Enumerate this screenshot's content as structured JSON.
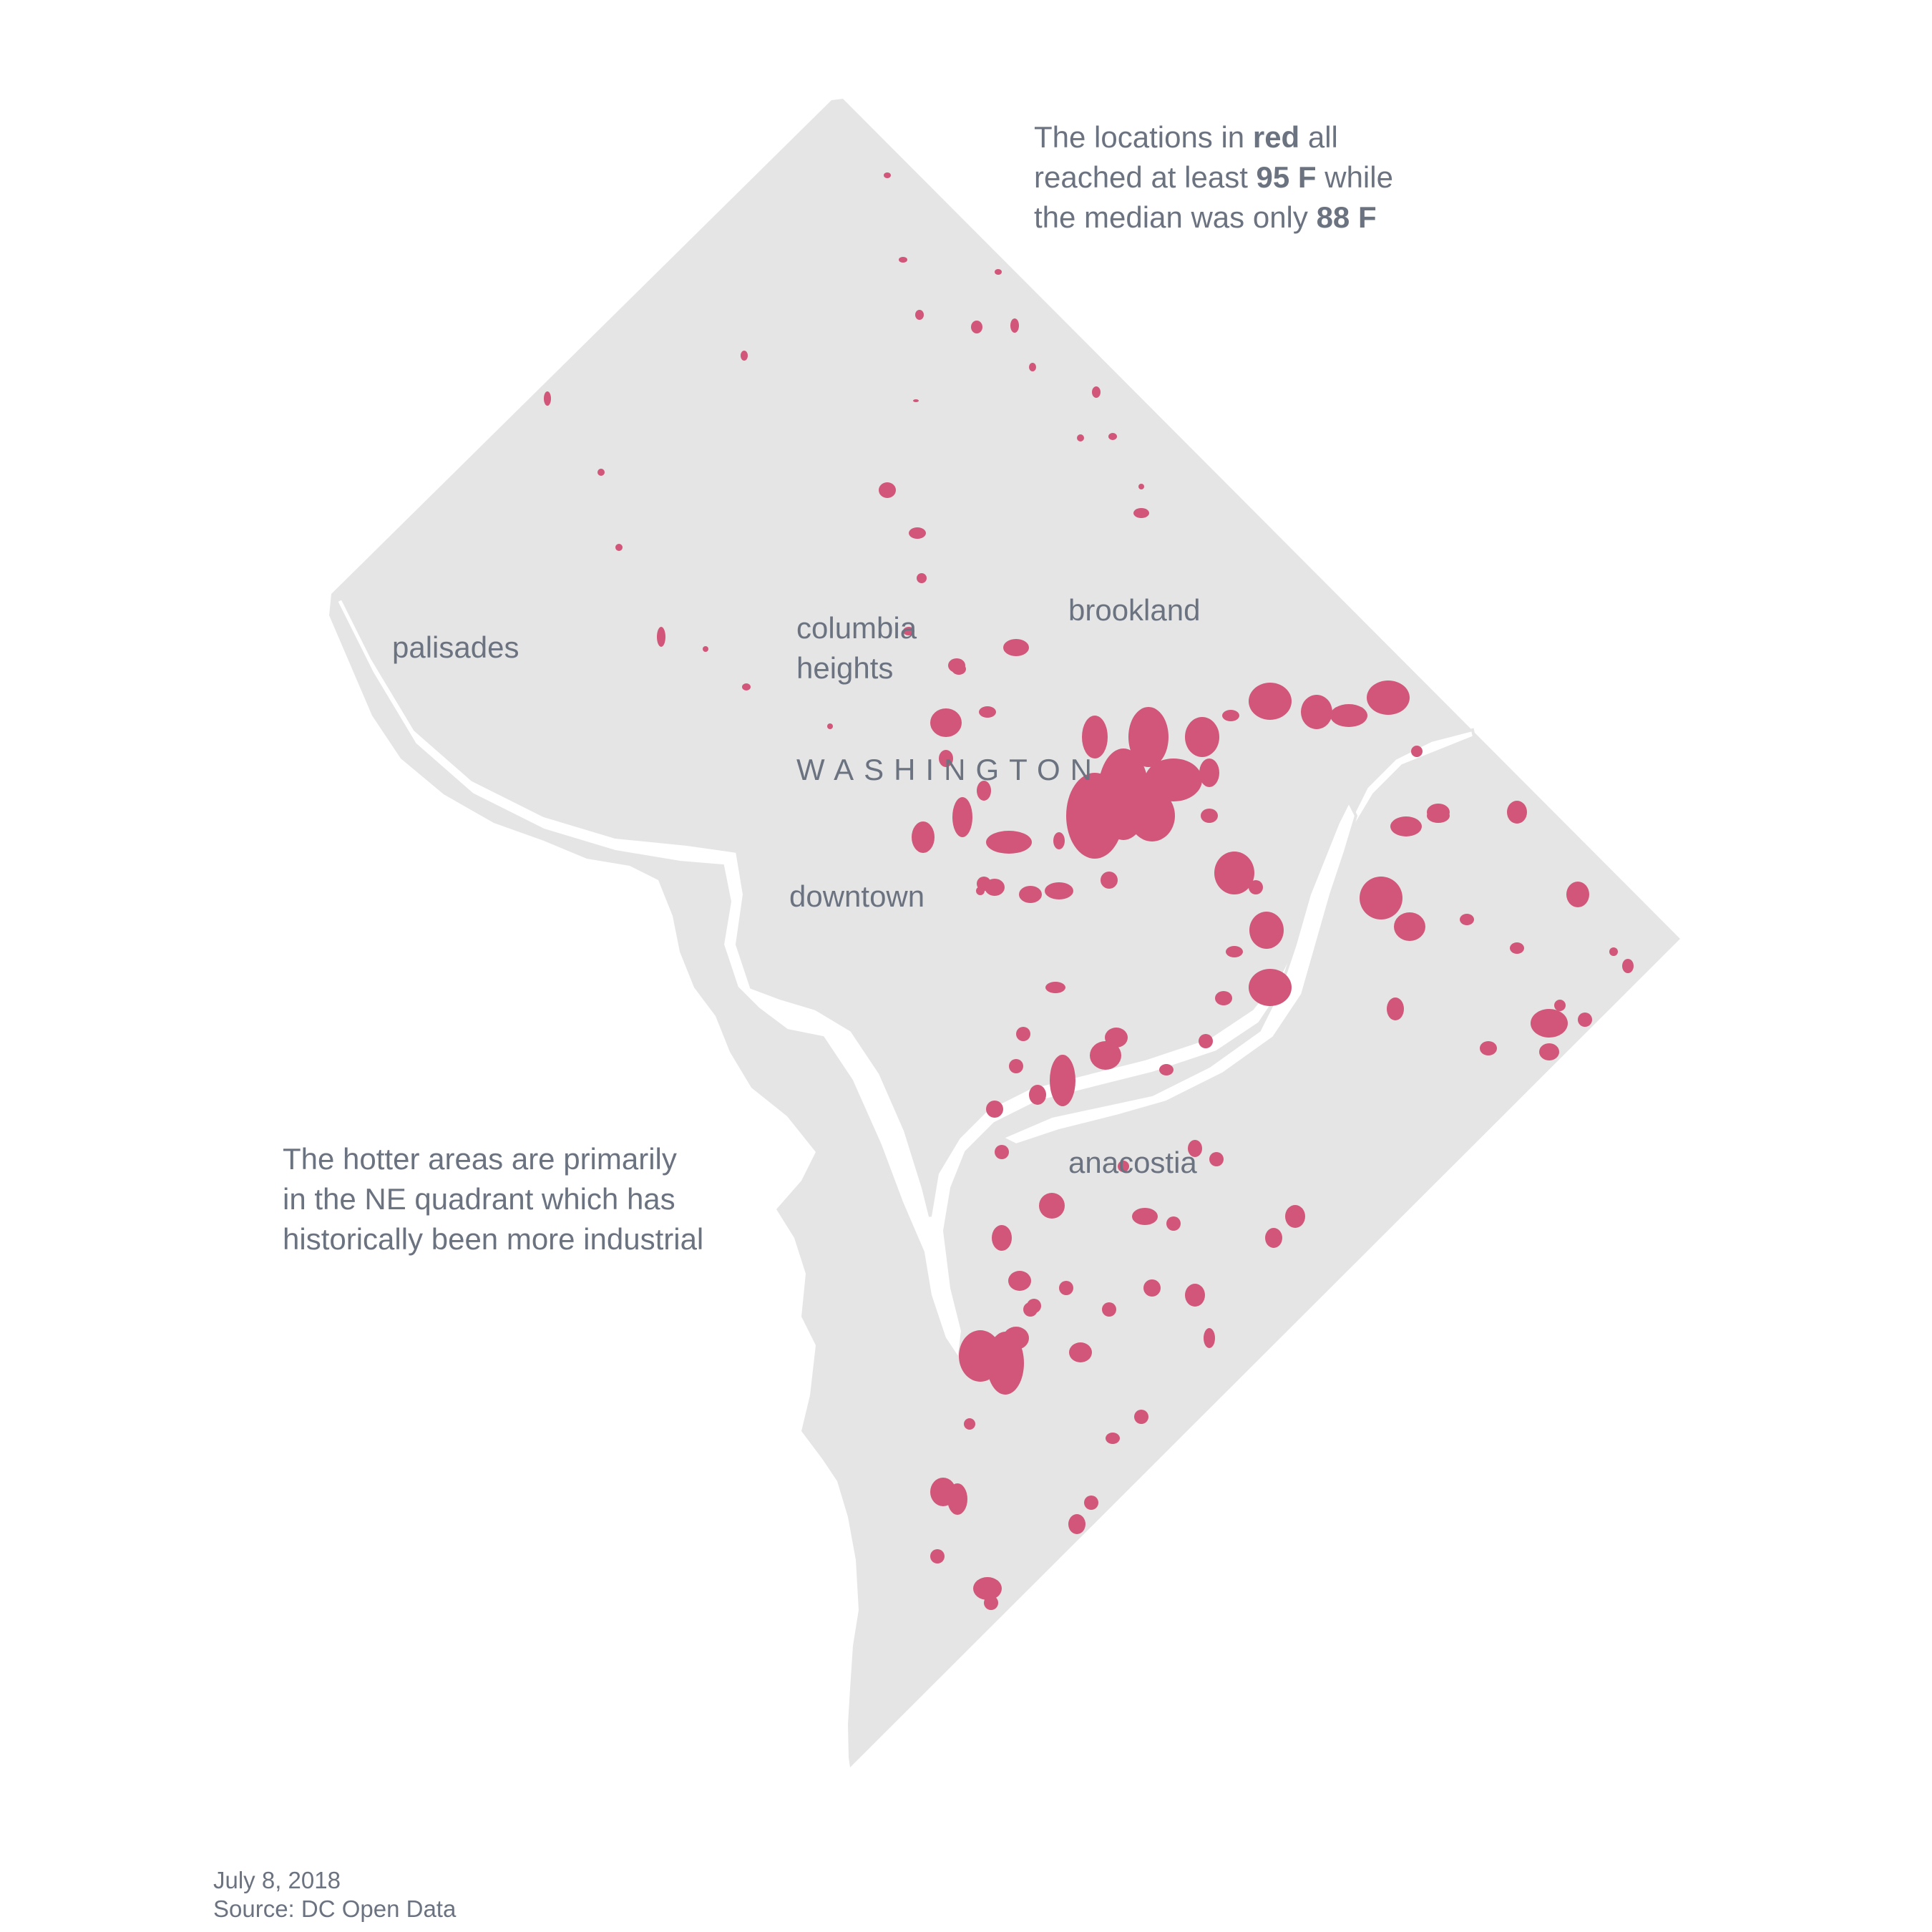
{
  "colors": {
    "land": "#e5e5e5",
    "water_outline": "#e5e5e5",
    "hot_area": "#d1567a",
    "text": "#6b7280",
    "background": "#ffffff"
  },
  "annotation_top": {
    "line1_pre": "The locations in ",
    "line1_bold": "red",
    "line1_post": " all",
    "line2_pre": "reached at least ",
    "line2_bold": "95 F",
    "line2_post": " while",
    "line3_pre": "the median was only ",
    "line3_bold": "88 F"
  },
  "annotation_bottom": {
    "line1": "The hotter areas are primarily",
    "line2": "in the NE quadrant which has",
    "line3": "historically been more industrial"
  },
  "places": {
    "palisades": "palisades",
    "columbia_line1": "columbia",
    "columbia_line2": "heights",
    "brookland": "brookland",
    "city": "WASHINGTON",
    "downtown": "downtown",
    "anacostia": "anacostia"
  },
  "footer": {
    "date": "July 8, 2018",
    "source": "Source: DC Open Data"
  }
}
